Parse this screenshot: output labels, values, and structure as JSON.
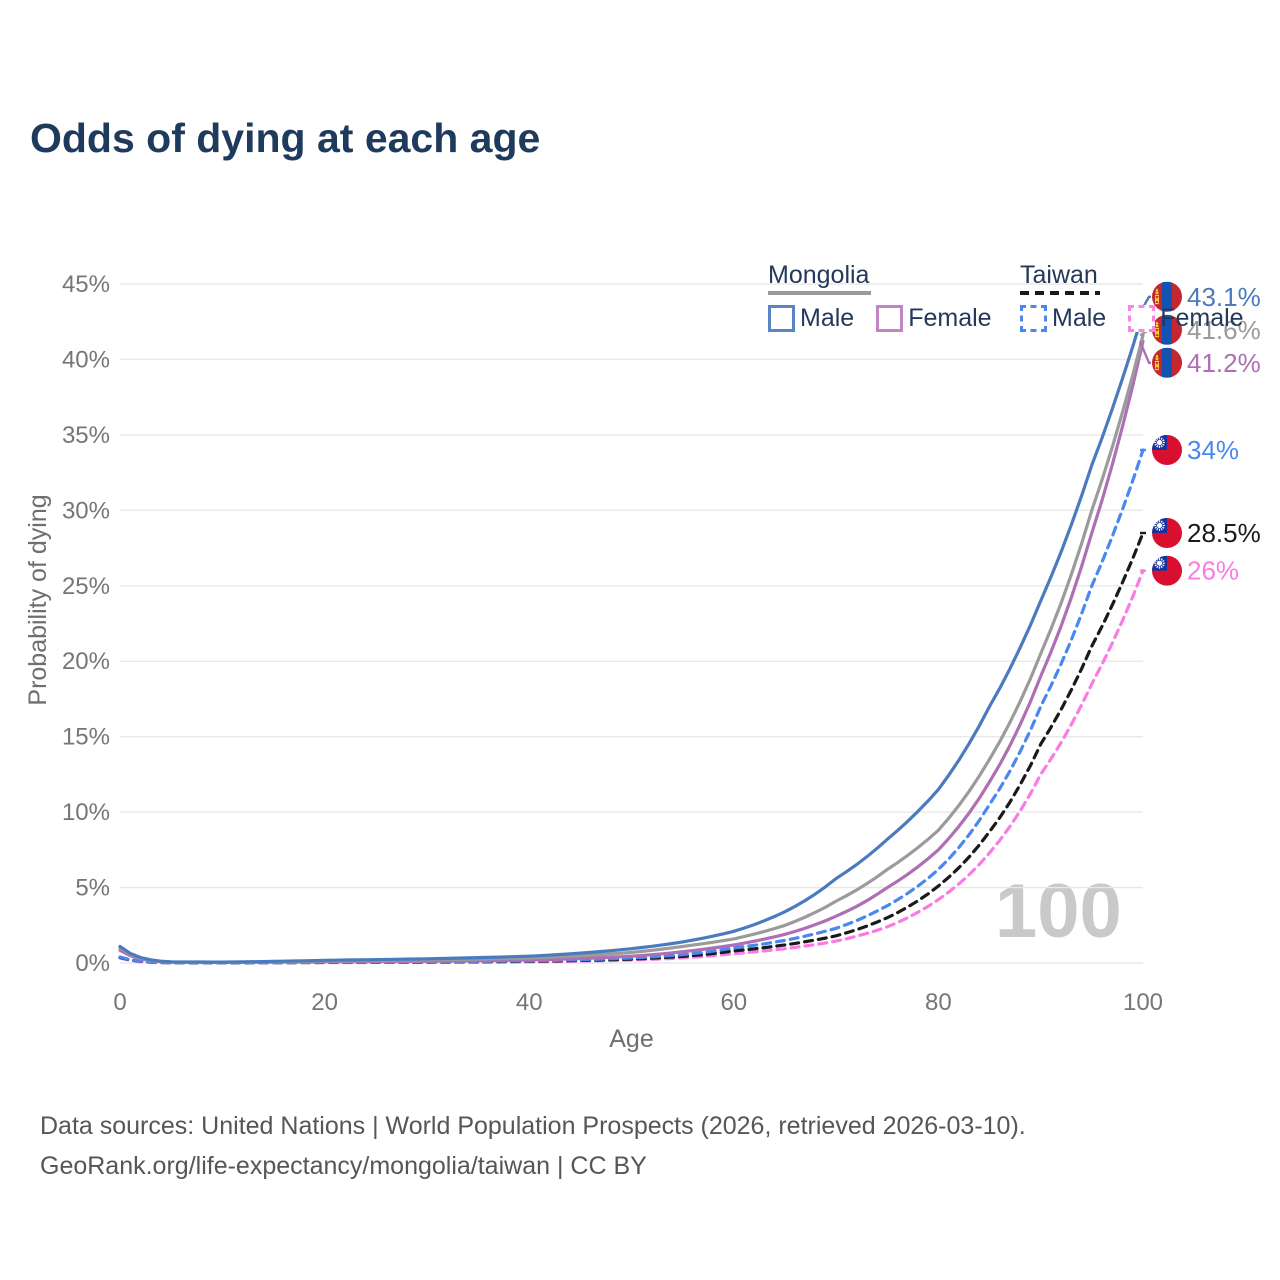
{
  "title": "Odds of dying at each age",
  "legend": {
    "groups": [
      {
        "name": "Mongolia",
        "line_color": "#9b9b9b",
        "line_style": "solid",
        "items": [
          {
            "label": "Male",
            "color": "#5b84c4",
            "line_style": "solid"
          },
          {
            "label": "Female",
            "color": "#c186c1",
            "line_style": "solid"
          }
        ]
      },
      {
        "name": "Taiwan",
        "line_color": "#1a1a1a",
        "line_style": "dashed",
        "items": [
          {
            "label": "Male",
            "color": "#4a88ee",
            "line_style": "dashed"
          },
          {
            "label": "Female",
            "color": "#fb84e4",
            "line_style": "dashed"
          }
        ]
      }
    ]
  },
  "chart_data": {
    "type": "line",
    "title": "Odds of dying at each age",
    "xlabel": "Age",
    "ylabel": "Probability of dying",
    "xlim": [
      0,
      100
    ],
    "ylim": [
      0,
      45
    ],
    "xticks": [
      0,
      20,
      40,
      60,
      80,
      100
    ],
    "yticks": [
      0,
      5,
      10,
      15,
      20,
      25,
      30,
      35,
      40,
      45
    ],
    "ytick_suffix": "%",
    "grid": true,
    "legend_position": "top-right",
    "watermark": "100",
    "x": [
      0,
      5,
      10,
      20,
      30,
      40,
      50,
      55,
      60,
      65,
      70,
      75,
      80,
      85,
      90,
      95,
      100
    ],
    "series": [
      {
        "id": "taiwan-female",
        "name": "Taiwan — Female",
        "country": "Taiwan",
        "sex": "Female",
        "color": "#f97ce4",
        "line_style": "dashed",
        "flag": "taiwan",
        "end_label": "26%",
        "values": [
          0.33,
          0.015,
          0.012,
          0.03,
          0.045,
          0.08,
          0.2,
          0.34,
          0.62,
          0.95,
          1.45,
          2.4,
          4.2,
          7.3,
          12.5,
          18.5,
          26.0
        ]
      },
      {
        "id": "taiwan",
        "name": "Taiwan",
        "country": "Taiwan",
        "sex": "All",
        "color": "#1a1a1a",
        "line_style": "dashed",
        "flag": "taiwan",
        "end_label": "28.5%",
        "values": [
          0.37,
          0.018,
          0.013,
          0.04,
          0.06,
          0.11,
          0.26,
          0.44,
          0.8,
          1.2,
          1.8,
          3.0,
          5.1,
          8.7,
          14.5,
          21.0,
          28.5
        ]
      },
      {
        "id": "taiwan-male",
        "name": "Taiwan — Male",
        "country": "Taiwan",
        "sex": "Male",
        "color": "#4a88ee",
        "line_style": "dashed",
        "flag": "taiwan",
        "end_label": "34%",
        "values": [
          0.4,
          0.02,
          0.015,
          0.05,
          0.08,
          0.14,
          0.33,
          0.55,
          1.0,
          1.5,
          2.3,
          3.8,
          6.2,
          10.5,
          17.0,
          25.0,
          34.0
        ]
      },
      {
        "id": "mongolia-female",
        "name": "Mongolia — Female",
        "country": "Mongolia",
        "sex": "Female",
        "color": "#ae6fb4",
        "line_style": "solid",
        "flag": "mongolia",
        "end_label": "41.2%",
        "values": [
          0.85,
          0.05,
          0.04,
          0.08,
          0.11,
          0.2,
          0.45,
          0.75,
          1.2,
          1.9,
          3.1,
          5.0,
          7.5,
          12.0,
          19.0,
          28.5,
          41.2
        ]
      },
      {
        "id": "mongolia",
        "name": "Mongolia",
        "country": "Mongolia",
        "sex": "All",
        "color": "#9b9b9b",
        "line_style": "solid",
        "flag": "mongolia",
        "end_label": "41.6%",
        "values": [
          1.0,
          0.06,
          0.05,
          0.13,
          0.2,
          0.33,
          0.7,
          1.1,
          1.6,
          2.5,
          4.1,
          6.2,
          8.8,
          13.5,
          20.5,
          30.0,
          41.6
        ]
      },
      {
        "id": "mongolia-male",
        "name": "Mongolia — Male",
        "country": "Mongolia",
        "sex": "Male",
        "color": "#4b7bbe",
        "line_style": "solid",
        "flag": "mongolia",
        "end_label": "43.1%",
        "values": [
          1.1,
          0.07,
          0.06,
          0.18,
          0.28,
          0.45,
          0.95,
          1.4,
          2.1,
          3.4,
          5.6,
          8.2,
          11.5,
          17.0,
          24.0,
          33.0,
          43.1
        ]
      }
    ]
  },
  "footer": {
    "line1": "Data sources: United Nations | World Population Prospects (2026, retrieved 2026-03-10).",
    "line2": "GeoRank.org/life-expectancy/mongolia/taiwan | CC BY"
  }
}
